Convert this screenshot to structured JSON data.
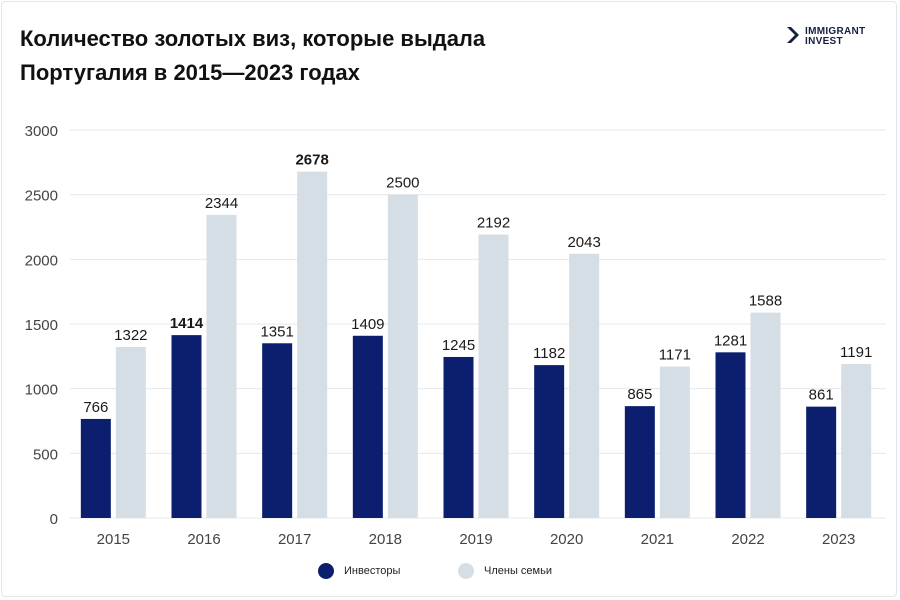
{
  "header": {
    "title_line1": "Количество золотых виз, которые выдала",
    "title_line2": "Португалия в 2015—2023 годах",
    "logo_line1": "IMMIGRANT",
    "logo_line2": "INVEST"
  },
  "colors": {
    "investors": "#0b1f6e",
    "family": "#d5dee4",
    "grid": "#e4e8ed",
    "text": "#1a1a1a",
    "axis_text": "#444444",
    "logo": "#14203f"
  },
  "legend": {
    "investors": "Инвесторы",
    "family": "Члены семьи"
  },
  "chart_data": {
    "type": "bar",
    "title": "Количество золотых виз, которые выдала Португалия в 2015—2023 годах",
    "categories": [
      "2015",
      "2016",
      "2017",
      "2018",
      "2019",
      "2020",
      "2021",
      "2022",
      "2023"
    ],
    "series": [
      {
        "name": "Инвесторы",
        "values": [
          766,
          1414,
          1351,
          1409,
          1245,
          1182,
          865,
          1281,
          861
        ],
        "highlight_index": 1
      },
      {
        "name": "Члены семьи",
        "values": [
          1322,
          2344,
          2678,
          2500,
          2192,
          2043,
          1171,
          1588,
          1191
        ],
        "highlight_index": 2
      }
    ],
    "ylim": [
      0,
      3000
    ],
    "yticks": [
      0,
      500,
      1000,
      1500,
      2000,
      2500,
      3000
    ],
    "grid": true,
    "legend_position": "bottom"
  }
}
